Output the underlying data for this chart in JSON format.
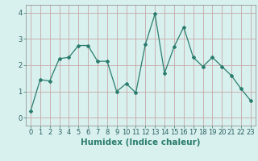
{
  "x": [
    0,
    1,
    2,
    3,
    4,
    5,
    6,
    7,
    8,
    9,
    10,
    11,
    12,
    13,
    14,
    15,
    16,
    17,
    18,
    19,
    20,
    21,
    22,
    23
  ],
  "y": [
    0.25,
    1.45,
    1.4,
    2.25,
    2.3,
    2.75,
    2.75,
    2.15,
    2.15,
    1.0,
    1.3,
    0.95,
    2.8,
    3.95,
    1.7,
    2.7,
    3.45,
    2.3,
    1.95,
    2.3,
    1.95,
    1.6,
    1.1,
    0.65
  ],
  "line_color": "#2a7d6e",
  "marker": "D",
  "marker_size": 2.0,
  "xlabel": "Humidex (Indice chaleur)",
  "xlim": [
    -0.5,
    23.5
  ],
  "ylim": [
    -0.3,
    4.3
  ],
  "yticks": [
    0,
    1,
    2,
    3,
    4
  ],
  "xticks": [
    0,
    1,
    2,
    3,
    4,
    5,
    6,
    7,
    8,
    9,
    10,
    11,
    12,
    13,
    14,
    15,
    16,
    17,
    18,
    19,
    20,
    21,
    22,
    23
  ],
  "bg_color": "#d8f0ee",
  "grid_color_v": "#c8b8b8",
  "grid_color_h": "#c8b8b8",
  "tick_fontsize": 6,
  "xlabel_fontsize": 7.5
}
